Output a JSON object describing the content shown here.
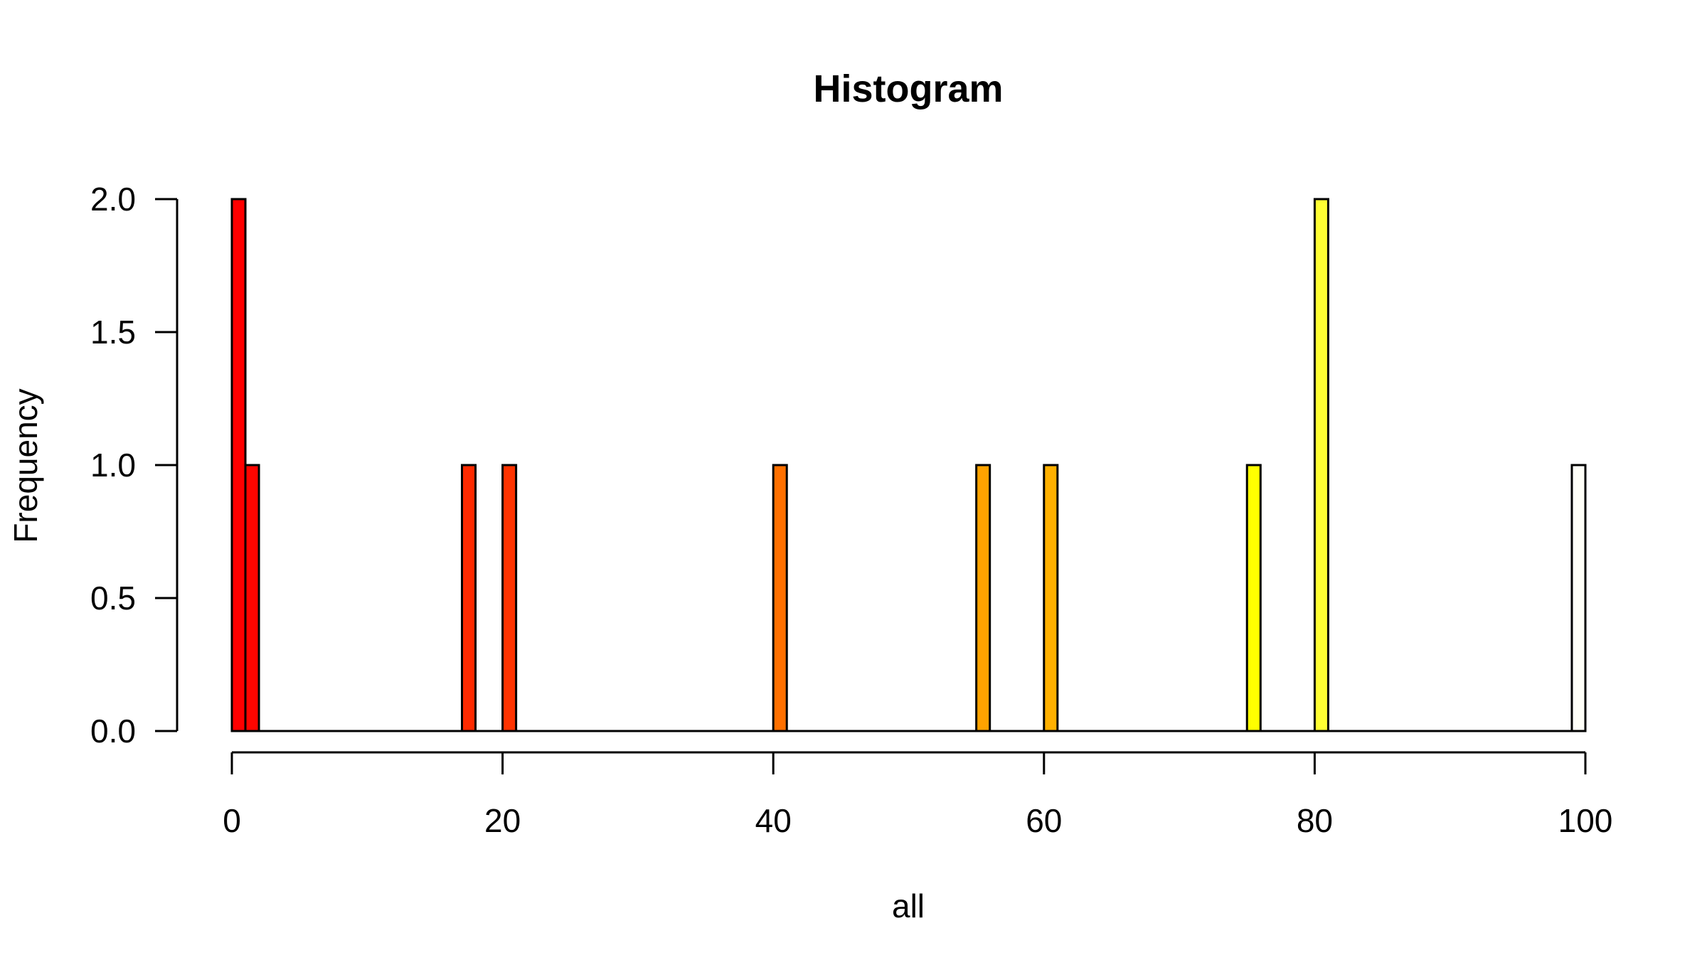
{
  "chart_data": {
    "type": "bar",
    "title": "Histogram",
    "xlabel": "all",
    "ylabel": "Frequency",
    "xlim": [
      0,
      100
    ],
    "ylim": [
      0,
      2
    ],
    "x_ticks": [
      "0",
      "20",
      "40",
      "60",
      "80",
      "100"
    ],
    "y_ticks": [
      "0.0",
      "0.5",
      "1.0",
      "1.5",
      "2.0"
    ],
    "bin_width": 1,
    "grid": false,
    "legend": "none",
    "bins": [
      {
        "start": 0,
        "end": 1,
        "count": 2,
        "color": "#FF0000"
      },
      {
        "start": 1,
        "end": 2,
        "count": 1,
        "color": "#FF0500"
      },
      {
        "start": 17,
        "end": 18,
        "count": 1,
        "color": "#FF2A00"
      },
      {
        "start": 20,
        "end": 21,
        "count": 1,
        "color": "#FF3300"
      },
      {
        "start": 40,
        "end": 41,
        "count": 1,
        "color": "#FF7000"
      },
      {
        "start": 55,
        "end": 56,
        "count": 1,
        "color": "#FFA300"
      },
      {
        "start": 60,
        "end": 61,
        "count": 1,
        "color": "#FFB000"
      },
      {
        "start": 75,
        "end": 76,
        "count": 1,
        "color": "#FFFF00"
      },
      {
        "start": 80,
        "end": 81,
        "count": 2,
        "color": "#FFFF33"
      },
      {
        "start": 99,
        "end": 100,
        "count": 1,
        "color": "#FFFFF8"
      }
    ]
  }
}
